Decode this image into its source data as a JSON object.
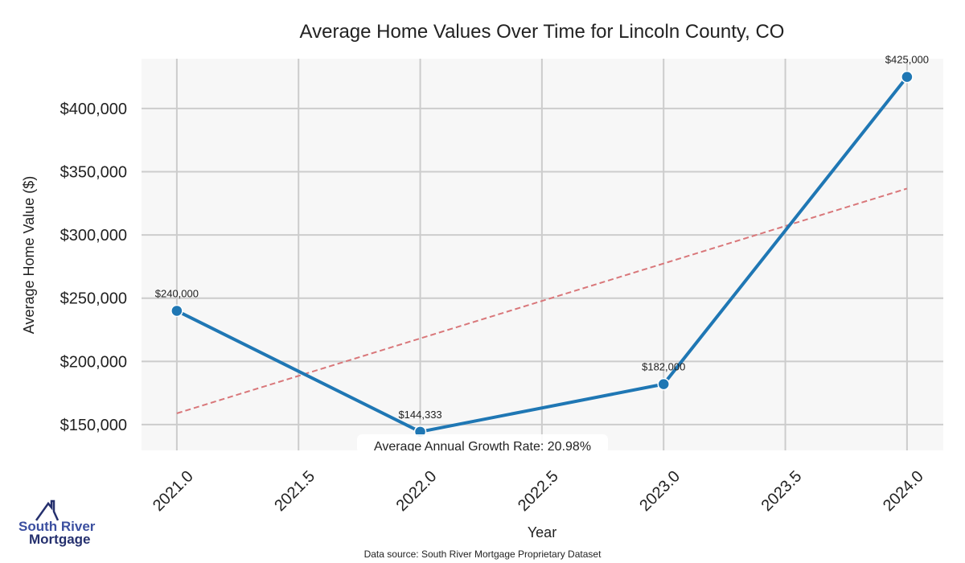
{
  "chart_data": {
    "type": "line",
    "title": "Average Home Values Over Time for Lincoln County, CO",
    "xlabel": "Year",
    "ylabel": "Average Home Value ($)",
    "x": [
      2021,
      2022,
      2023,
      2024
    ],
    "series": [
      {
        "name": "Average Home Value",
        "values": [
          240000,
          144333,
          182000,
          425000
        ],
        "labels": [
          "$240,000",
          "$144,333",
          "$182,000",
          "$425,000"
        ],
        "color": "#1f77b4"
      },
      {
        "name": "Trend",
        "values": [
          158900,
          336700
        ],
        "x": [
          2021,
          2024
        ],
        "color": "#d9777a",
        "style": "dashed"
      }
    ],
    "xticks": [
      2021.0,
      2021.5,
      2022.0,
      2022.5,
      2023.0,
      2023.5,
      2024.0
    ],
    "xtick_labels": [
      "2021.0",
      "2021.5",
      "2022.0",
      "2022.5",
      "2023.0",
      "2023.5",
      "2024.0"
    ],
    "yticks": [
      150000,
      200000,
      250000,
      300000,
      350000,
      400000
    ],
    "ytick_labels": [
      "$150,000",
      "$200,000",
      "$250,000",
      "$300,000",
      "$350,000",
      "$400,000"
    ],
    "xlim": [
      2020.855,
      2024.149
    ],
    "ylim": [
      129600,
      439400
    ],
    "grid": true,
    "annotation": "Average Annual Growth Rate: 20.98%",
    "source": "Data source: South River Mortgage Proprietary Dataset"
  },
  "logo": {
    "line1": "South River",
    "line2": "Mortgage"
  }
}
